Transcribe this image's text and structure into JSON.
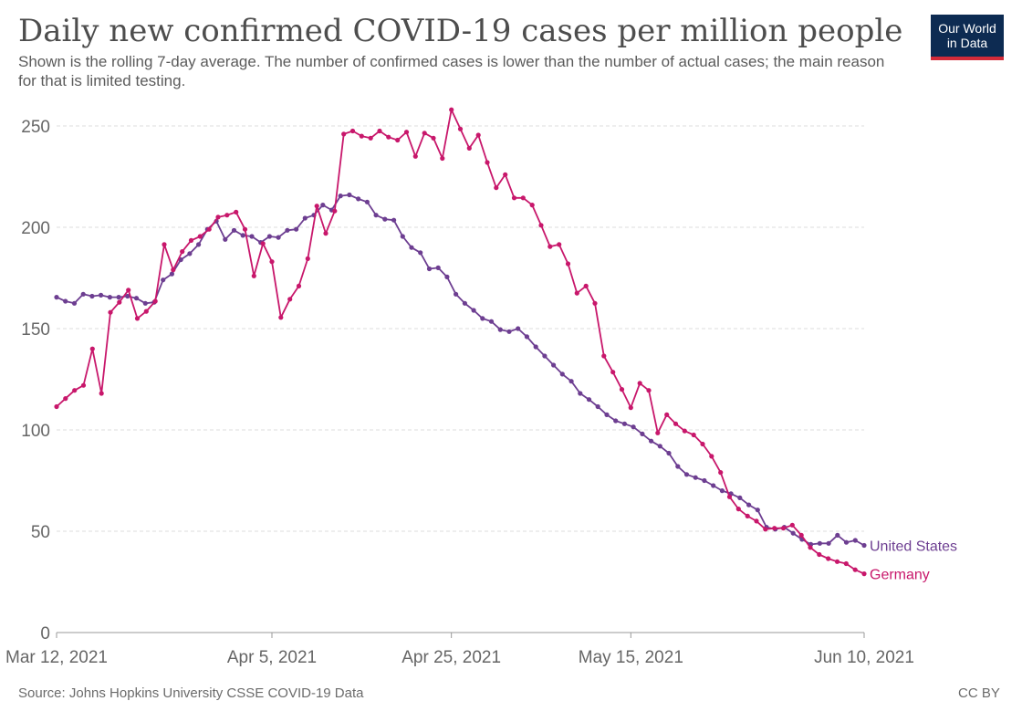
{
  "header": {
    "title": "Daily new confirmed COVID-19 cases per million people",
    "subtitle": "Shown is the rolling 7-day average. The number of confirmed cases is lower than the number of actual cases; the main reason for that is limited testing."
  },
  "logo": {
    "line1": "Our World",
    "line2": "in Data"
  },
  "footer": {
    "source": "Source: Johns Hopkins University CSSE COVID-19 Data",
    "license": "CC BY"
  },
  "chart_data": {
    "type": "line",
    "title": "Daily new confirmed COVID-19 cases per million people",
    "xlabel": "",
    "ylabel": "",
    "x_start": "2021-03-12",
    "x_end": "2021-06-10",
    "xticks": [
      "Mar 12, 2021",
      "Apr 5, 2021",
      "Apr 25, 2021",
      "May 15, 2021",
      "Jun 10, 2021"
    ],
    "yticks": [
      0,
      50,
      100,
      150,
      200,
      250
    ],
    "ylim": [
      0,
      250
    ],
    "grid": "horizontal dashed",
    "legend": "inline labels at line ends (right)",
    "series": [
      {
        "name": "United States",
        "color": "#6d3e91",
        "values": [
          165.5,
          163.5,
          162.5,
          167,
          166,
          166.5,
          165.5,
          165.5,
          166,
          165,
          162.5,
          163,
          174,
          177,
          184,
          187,
          191.5,
          199,
          203,
          194,
          198.5,
          196,
          195.5,
          192.5,
          195.5,
          195,
          198.5,
          199,
          204.5,
          206,
          211,
          208.5,
          215.5,
          216,
          214,
          212.5,
          206,
          204,
          203.5,
          195.5,
          190,
          187.5,
          179.5,
          180,
          175.5,
          167,
          162.5,
          159,
          155,
          153.5,
          149.5,
          148.5,
          150,
          146,
          141,
          136.5,
          132,
          127.5,
          124,
          118,
          115,
          111.5,
          107.5,
          104.5,
          103,
          101.5,
          98,
          94.5,
          92,
          88.5,
          82,
          78,
          76.5,
          75,
          72.5,
          70,
          68.5,
          66.5,
          63,
          60.5,
          52,
          51,
          52,
          49,
          46,
          43.5,
          44,
          44,
          48,
          44.5,
          45.5,
          43
        ]
      },
      {
        "name": "Germany",
        "color": "#c8176b",
        "values": [
          111.5,
          115.5,
          119.5,
          122,
          140,
          118,
          158,
          163,
          169,
          155,
          158.5,
          163.5,
          191.5,
          179,
          188,
          193.5,
          195.5,
          199,
          205,
          206,
          207.5,
          199,
          176,
          192,
          183,
          155.5,
          164.5,
          171,
          184.5,
          210.5,
          197,
          208,
          246,
          247.5,
          245,
          244,
          247.5,
          244.5,
          243,
          247,
          235,
          246.5,
          244,
          234,
          258,
          248.5,
          239,
          245.5,
          232,
          219.5,
          226,
          214.5,
          214.5,
          211,
          201,
          190.5,
          191.5,
          182,
          167.5,
          171,
          162.5,
          136.5,
          128.5,
          120,
          111,
          123,
          119.5,
          98.5,
          107.5,
          103,
          99.5,
          97.5,
          93,
          87,
          79,
          67,
          61,
          57.5,
          55,
          51,
          51.5,
          51.5,
          53,
          48,
          42,
          38.5,
          36.5,
          35,
          34,
          31,
          29
        ]
      }
    ]
  }
}
